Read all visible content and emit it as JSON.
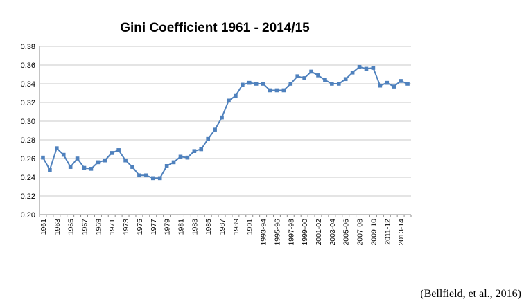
{
  "chart_data": {
    "type": "line",
    "title": "Gini Coefficient 1961 - 2014/15",
    "ylim": [
      0.2,
      0.38
    ],
    "yticks": [
      "0.20",
      "0.22",
      "0.24",
      "0.26",
      "0.28",
      "0.30",
      "0.32",
      "0.34",
      "0.36",
      "0.38"
    ],
    "grid": "horizontal",
    "legend": "none",
    "color": "#4f81bd",
    "x": [
      "1961",
      "1962",
      "1963",
      "1964",
      "1965",
      "1966",
      "1967",
      "1968",
      "1969",
      "1970",
      "1971",
      "1972",
      "1973",
      "1974",
      "1975",
      "1976",
      "1977",
      "1978",
      "1979",
      "1980",
      "1981",
      "1982",
      "1983",
      "1984",
      "1985",
      "1986",
      "1987",
      "1988",
      "1989",
      "1990",
      "1991",
      "1992",
      "1993-94",
      "1994-95",
      "1995-96",
      "1996-97",
      "1997-98",
      "1998-99",
      "1999-00",
      "2000-01",
      "2001-02",
      "2002-03",
      "2003-04",
      "2004-05",
      "2005-06",
      "2006-07",
      "2007-08",
      "2008-09",
      "2009-10",
      "2010-11",
      "2011-12",
      "2012-13",
      "2013-14",
      "2014-15"
    ],
    "xticks_shown": [
      "1961",
      "1963",
      "1965",
      "1967",
      "1969",
      "1971",
      "1973",
      "1975",
      "1977",
      "1979",
      "1981",
      "1983",
      "1985",
      "1987",
      "1989",
      "1991",
      "1993-94",
      "1995-96",
      "1997-98",
      "1999-00",
      "2001-02",
      "2003-04",
      "2005-06",
      "2007-08",
      "2009-10",
      "2011-12",
      "2013-14"
    ],
    "series": [
      {
        "values": [
          0.261,
          0.248,
          0.271,
          0.264,
          0.251,
          0.26,
          0.25,
          0.249,
          0.256,
          0.258,
          0.266,
          0.269,
          0.258,
          0.251,
          0.242,
          0.242,
          0.239,
          0.239,
          0.252,
          0.256,
          0.262,
          0.261,
          0.268,
          0.27,
          0.281,
          0.291,
          0.304,
          0.322,
          0.327,
          0.339,
          0.341,
          0.34,
          0.34,
          0.333,
          0.333,
          0.333,
          0.34,
          0.348,
          0.346,
          0.353,
          0.349,
          0.344,
          0.34,
          0.34,
          0.345,
          0.352,
          0.358,
          0.356,
          0.357,
          0.338,
          0.341,
          0.337,
          0.343,
          0.34
        ]
      }
    ]
  },
  "caption": "(Bellfield, et al., 2016)"
}
